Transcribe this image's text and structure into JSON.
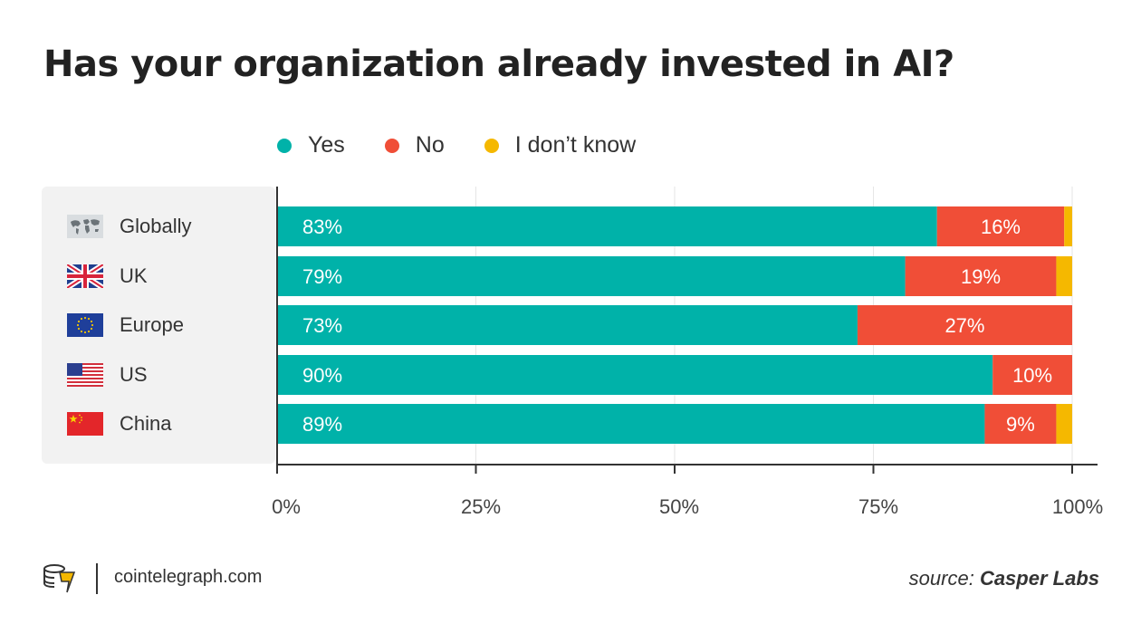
{
  "title": "Has your organization already invested in AI?",
  "legend": [
    {
      "label": "Yes",
      "color": "#00b2a9"
    },
    {
      "label": "No",
      "color": "#f04e37"
    },
    {
      "label": "I don’t know",
      "color": "#f5b800"
    }
  ],
  "footer": {
    "site": "cointelegraph.com",
    "source_prefix": "source:",
    "source_name": "Casper Labs"
  },
  "chart_data": {
    "type": "bar",
    "orientation": "horizontal",
    "stacked": true,
    "title": "Has your organization already invested in AI?",
    "categories": [
      "Globally",
      "UK",
      "Europe",
      "US",
      "China"
    ],
    "series": [
      {
        "name": "Yes",
        "color": "#00b2a9",
        "values": [
          83,
          79,
          73,
          90,
          89
        ],
        "labels": [
          "83%",
          "79%",
          "73%",
          "90%",
          "89%"
        ]
      },
      {
        "name": "No",
        "color": "#f04e37",
        "values": [
          16,
          19,
          27,
          10,
          9
        ],
        "labels": [
          "16%",
          "19%",
          "27%",
          "10%",
          "9%"
        ]
      },
      {
        "name": "I don’t know",
        "color": "#f5b800",
        "values": [
          1,
          2,
          0,
          0,
          2
        ],
        "labels": [
          "",
          "",
          "",
          "",
          ""
        ]
      }
    ],
    "xlim": [
      0,
      100
    ],
    "xticks": [
      "0%",
      "25%",
      "50%",
      "75%",
      "100%"
    ],
    "grid": true,
    "legend_position": "top"
  }
}
